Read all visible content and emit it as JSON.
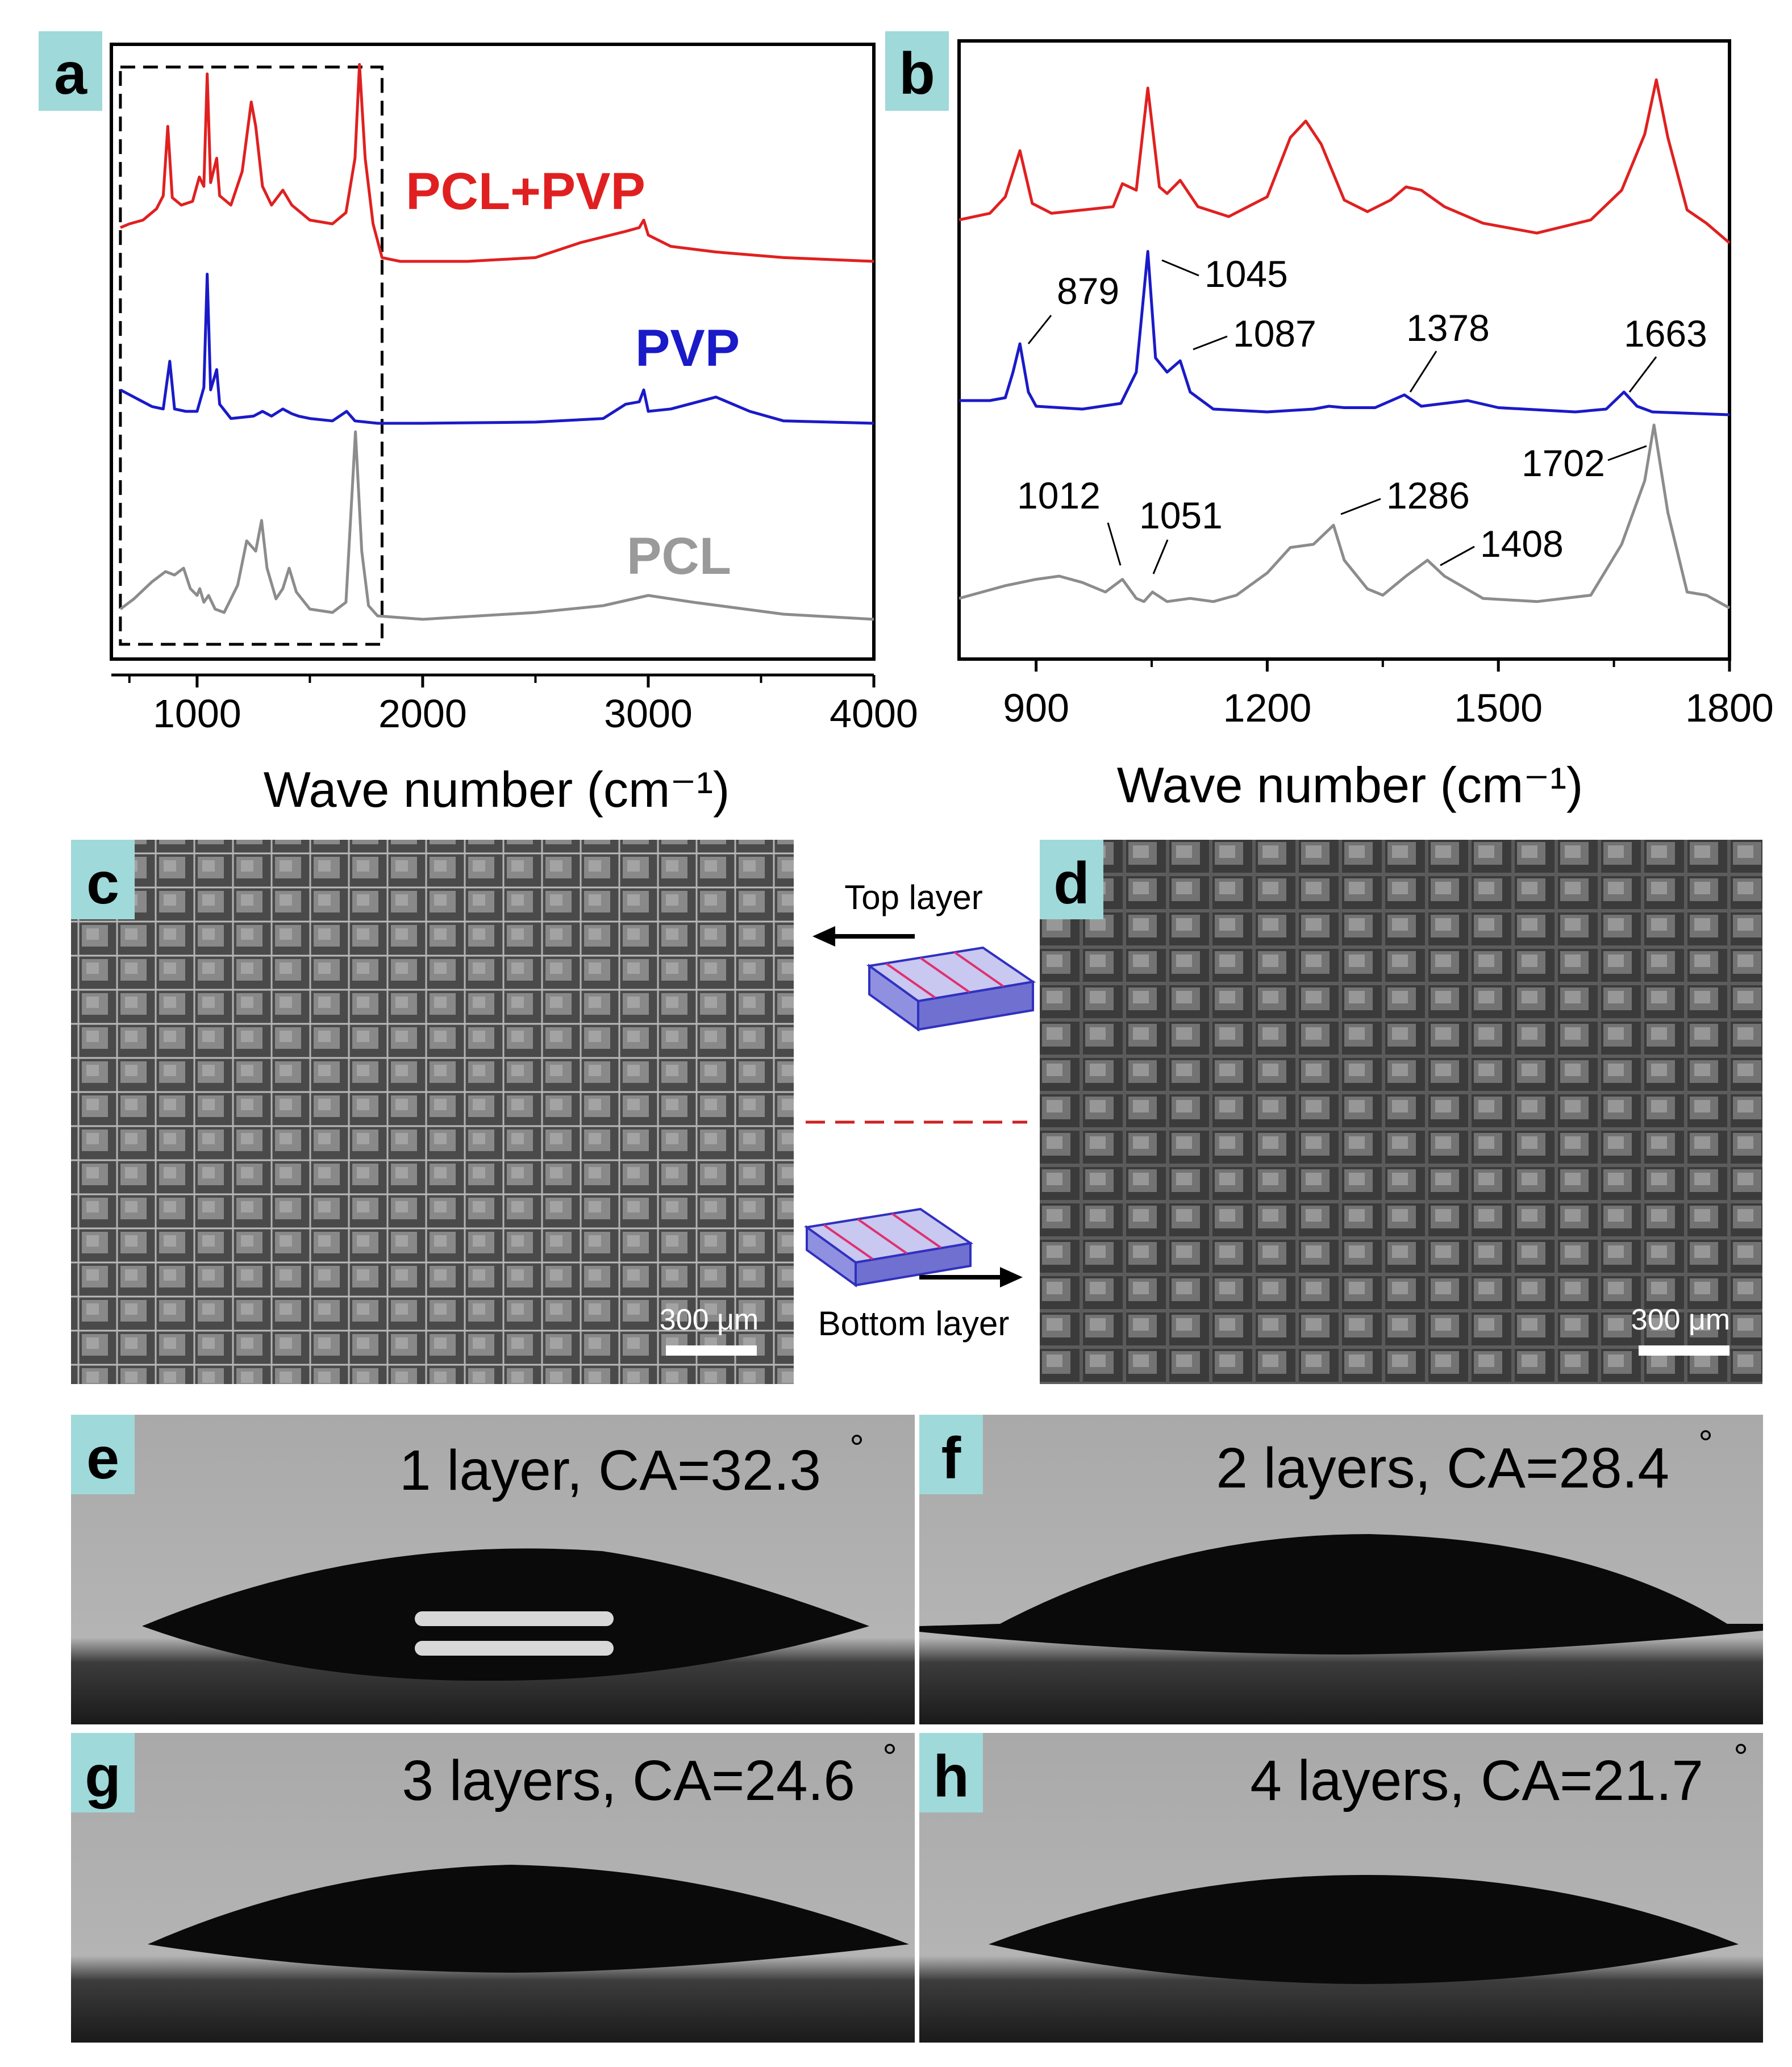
{
  "panel_labels": {
    "a": "a",
    "b": "b",
    "c": "c",
    "d": "d",
    "e": "e",
    "f": "f",
    "g": "g",
    "h": "h"
  },
  "colors": {
    "pclpvp": "#e02020",
    "pvp": "#1a1ac8",
    "pcl": "#8c8c8c",
    "label_bg": "#9fd9d9",
    "frame": "#000000"
  },
  "chart_data": [
    {
      "type": "line",
      "panel": "a",
      "xlabel": "Wave number (cm⁻¹)",
      "ylabel": "",
      "xlim": [
        620,
        4000
      ],
      "x_ticks": [
        1000,
        2000,
        3000,
        4000
      ],
      "x_tick_labels": [
        "1000",
        "2000",
        "3000",
        "4000"
      ],
      "dashed_region": [
        660,
        1820
      ],
      "series": [
        {
          "name": "PCL+PVP",
          "color": "#e02020",
          "baseline": 0.0,
          "x": [
            660,
            700,
            760,
            820,
            850,
            870,
            890,
            930,
            980,
            1010,
            1030,
            1045,
            1060,
            1087,
            1100,
            1150,
            1200,
            1240,
            1260,
            1290,
            1330,
            1380,
            1420,
            1500,
            1600,
            1660,
            1700,
            1720,
            1745,
            1780,
            1820,
            1900,
            2200,
            2500,
            2700,
            2900,
            2960,
            2980,
            3000,
            3100,
            3300,
            3600,
            4000
          ],
          "y": [
            0.18,
            0.2,
            0.22,
            0.28,
            0.35,
            0.72,
            0.34,
            0.3,
            0.32,
            0.45,
            0.4,
            1.0,
            0.42,
            0.55,
            0.35,
            0.3,
            0.48,
            0.85,
            0.72,
            0.4,
            0.3,
            0.38,
            0.3,
            0.22,
            0.2,
            0.26,
            0.55,
            1.05,
            0.55,
            0.2,
            0.02,
            0.0,
            0.0,
            0.02,
            0.1,
            0.16,
            0.18,
            0.22,
            0.14,
            0.08,
            0.05,
            0.02,
            0.0
          ]
        },
        {
          "name": "PVP",
          "color": "#1a1ac8",
          "baseline": 0.0,
          "x": [
            660,
            720,
            800,
            850,
            879,
            900,
            950,
            1000,
            1030,
            1045,
            1060,
            1087,
            1100,
            1150,
            1250,
            1290,
            1330,
            1380,
            1420,
            1450,
            1500,
            1600,
            1663,
            1700,
            1800,
            2000,
            2500,
            2800,
            2900,
            2960,
            2980,
            3000,
            3100,
            3300,
            3450,
            3600,
            4000
          ],
          "y": [
            0.28,
            0.22,
            0.14,
            0.12,
            0.52,
            0.12,
            0.1,
            0.1,
            0.3,
            1.25,
            0.28,
            0.45,
            0.16,
            0.04,
            0.06,
            0.1,
            0.06,
            0.12,
            0.08,
            0.06,
            0.04,
            0.02,
            0.1,
            0.02,
            0.0,
            0.0,
            0.01,
            0.04,
            0.16,
            0.18,
            0.28,
            0.1,
            0.12,
            0.22,
            0.1,
            0.02,
            0.0
          ]
        },
        {
          "name": "PCL",
          "color": "#8c8c8c",
          "baseline": 0.0,
          "x": [
            660,
            720,
            800,
            860,
            900,
            940,
            970,
            1000,
            1012,
            1030,
            1051,
            1080,
            1120,
            1180,
            1220,
            1260,
            1286,
            1310,
            1350,
            1380,
            1408,
            1440,
            1500,
            1600,
            1660,
            1702,
            1730,
            1760,
            1800,
            2000,
            2500,
            2800,
            3000,
            3200,
            3600,
            4000
          ],
          "y": [
            0.06,
            0.12,
            0.22,
            0.28,
            0.26,
            0.3,
            0.18,
            0.14,
            0.18,
            0.1,
            0.14,
            0.06,
            0.04,
            0.2,
            0.46,
            0.4,
            0.58,
            0.3,
            0.12,
            0.18,
            0.3,
            0.16,
            0.06,
            0.04,
            0.1,
            1.1,
            0.4,
            0.08,
            0.02,
            0.0,
            0.04,
            0.08,
            0.14,
            0.1,
            0.03,
            0.0
          ]
        }
      ],
      "legend": [
        "PCL+PVP",
        "PVP",
        "PCL"
      ]
    },
    {
      "type": "line",
      "panel": "b",
      "xlabel": "Wave number (cm⁻¹)",
      "ylabel": "",
      "xlim": [
        800,
        1800
      ],
      "x_ticks": [
        900,
        1200,
        1500,
        1800
      ],
      "x_tick_labels": [
        "900",
        "1200",
        "1500",
        "1800"
      ],
      "series": [
        {
          "name": "PCL+PVP",
          "color": "#e02020",
          "x": [
            800,
            840,
            860,
            879,
            895,
            920,
            960,
            1000,
            1012,
            1030,
            1045,
            1060,
            1070,
            1087,
            1110,
            1150,
            1200,
            1230,
            1250,
            1270,
            1300,
            1330,
            1360,
            1380,
            1400,
            1430,
            1480,
            1550,
            1620,
            1660,
            1690,
            1705,
            1720,
            1745,
            1770,
            1800
          ],
          "y": [
            0.2,
            0.24,
            0.34,
            0.62,
            0.3,
            0.24,
            0.26,
            0.28,
            0.42,
            0.38,
            1.0,
            0.4,
            0.36,
            0.44,
            0.28,
            0.22,
            0.34,
            0.7,
            0.8,
            0.66,
            0.32,
            0.25,
            0.32,
            0.4,
            0.38,
            0.28,
            0.18,
            0.12,
            0.2,
            0.38,
            0.72,
            1.05,
            0.7,
            0.26,
            0.18,
            0.06
          ]
        },
        {
          "name": "PVP",
          "color": "#1a1ac8",
          "x": [
            800,
            840,
            860,
            870,
            879,
            890,
            900,
            960,
            1010,
            1030,
            1045,
            1055,
            1070,
            1087,
            1100,
            1130,
            1200,
            1260,
            1280,
            1300,
            1340,
            1378,
            1400,
            1430,
            1460,
            1500,
            1600,
            1640,
            1663,
            1680,
            1700,
            1800
          ],
          "y": [
            0.1,
            0.1,
            0.12,
            0.3,
            0.5,
            0.16,
            0.06,
            0.04,
            0.08,
            0.3,
            1.15,
            0.4,
            0.3,
            0.38,
            0.16,
            0.04,
            0.02,
            0.04,
            0.06,
            0.05,
            0.05,
            0.14,
            0.06,
            0.08,
            0.1,
            0.05,
            0.02,
            0.04,
            0.16,
            0.06,
            0.02,
            0.0
          ]
        },
        {
          "name": "PCL",
          "color": "#8c8c8c",
          "x": [
            800,
            830,
            860,
            900,
            930,
            960,
            990,
            1012,
            1030,
            1040,
            1051,
            1070,
            1100,
            1130,
            1160,
            1200,
            1230,
            1260,
            1286,
            1300,
            1330,
            1350,
            1380,
            1408,
            1430,
            1480,
            1550,
            1620,
            1660,
            1690,
            1702,
            1720,
            1745,
            1770,
            1800
          ],
          "y": [
            0.06,
            0.1,
            0.14,
            0.18,
            0.2,
            0.16,
            0.1,
            0.18,
            0.06,
            0.04,
            0.1,
            0.04,
            0.06,
            0.04,
            0.08,
            0.22,
            0.38,
            0.4,
            0.52,
            0.3,
            0.12,
            0.08,
            0.2,
            0.3,
            0.2,
            0.06,
            0.04,
            0.08,
            0.4,
            0.8,
            1.15,
            0.6,
            0.1,
            0.08,
            0.0
          ]
        }
      ],
      "annotations": [
        "879",
        "1045",
        "1087",
        "1378",
        "1663",
        "1702",
        "1012",
        "1051",
        "1286",
        "1408"
      ]
    }
  ],
  "panel_a_labels": {
    "pclpvp": "PCL+PVP",
    "pvp": "PVP",
    "pcl": "PCL"
  },
  "micro": {
    "scale_c": "300 μm",
    "scale_d": "300 μm",
    "top_layer": "Top layer",
    "bottom_layer": "Bottom layer"
  },
  "contact_angle": {
    "e": "1 layer, CA=32.3",
    "f": "2 layers, CA=28.4",
    "g": "3 layers, CA=24.6",
    "h": "4 layers, CA=21.7",
    "deg": "°"
  }
}
